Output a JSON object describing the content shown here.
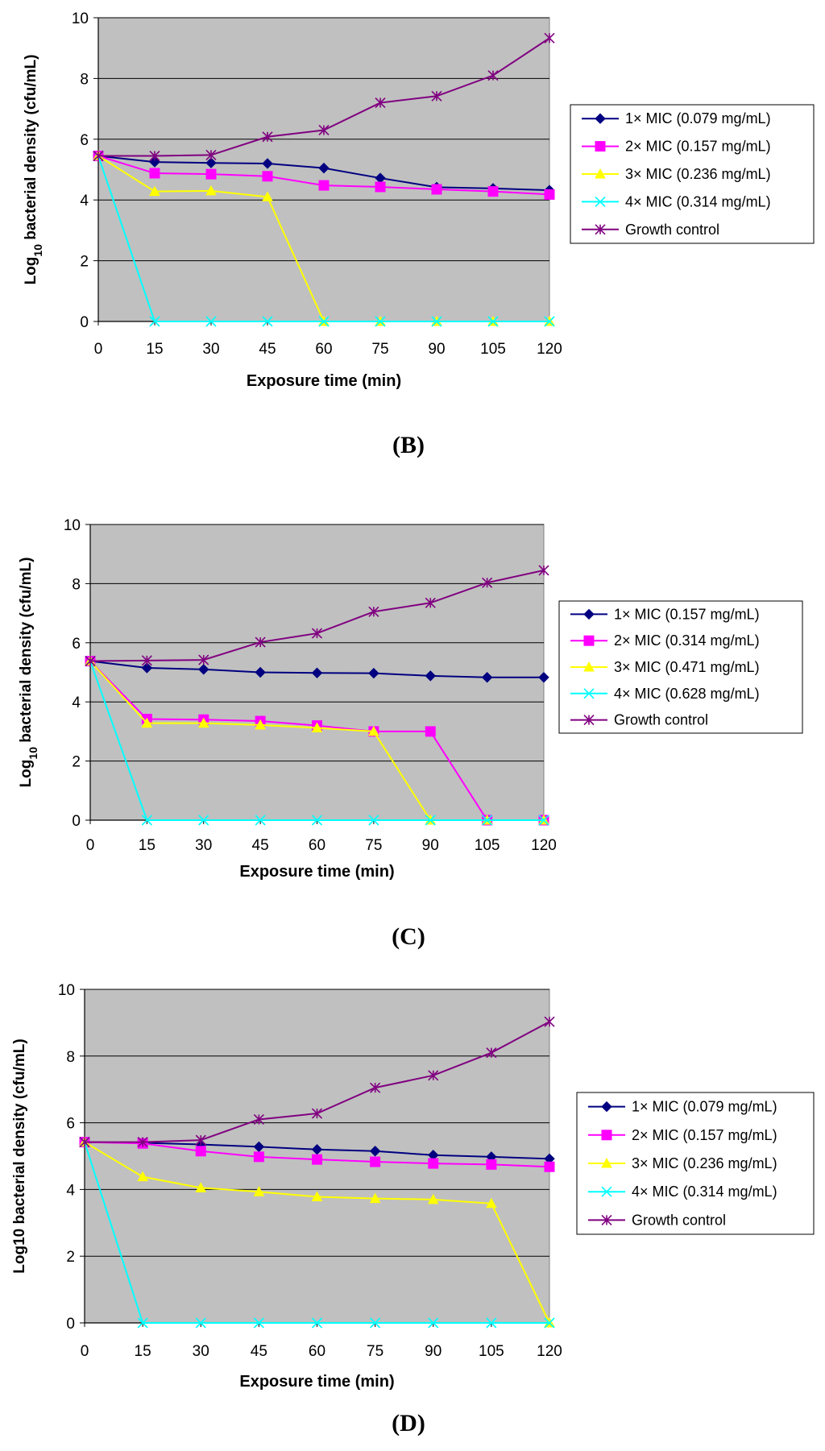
{
  "colors": {
    "plot_bg": "#c0c0c0",
    "gridline": "#000000",
    "mic1": "#000080",
    "mic2": "#ff00ff",
    "mic3": "#ffff00",
    "mic4": "#00ffff",
    "growth": "#800080"
  },
  "chart_data": [
    {
      "type": "line",
      "panel_label": "(B)",
      "xlabel": "Exposure time (min)",
      "ylabel": "Log10 bacterial density (cfu/mL)",
      "ylabel_parts": {
        "pre": "Log",
        "sub": "10",
        "post": " bacterial density (cfu/mL)"
      },
      "x": [
        0,
        15,
        30,
        45,
        60,
        75,
        90,
        105,
        120
      ],
      "x_ticks": [
        "0",
        "15",
        "30",
        "45",
        "60",
        "75",
        "90",
        "105",
        "120"
      ],
      "ylim": [
        0,
        10
      ],
      "y_ticks": [
        "0",
        "2",
        "4",
        "6",
        "8",
        "10"
      ],
      "grid": true,
      "legend_position": "right",
      "series": [
        {
          "name": "1× MIC (0.079 mg/mL)",
          "color": "#000080",
          "marker": "diamond",
          "values": [
            5.45,
            5.25,
            5.22,
            5.2,
            5.05,
            4.72,
            4.42,
            4.38,
            4.32
          ]
        },
        {
          "name": "2× MIC (0.157 mg/mL)",
          "color": "#ff00ff",
          "marker": "square",
          "values": [
            5.45,
            4.88,
            4.85,
            4.78,
            4.48,
            4.43,
            4.35,
            4.28,
            4.18
          ]
        },
        {
          "name": "3× MIC (0.236 mg/mL)",
          "color": "#ffff00",
          "marker": "triangle",
          "values": [
            5.45,
            4.28,
            4.3,
            4.1,
            0,
            0,
            0,
            0,
            0
          ]
        },
        {
          "name": "4× MIC (0.314 mg/mL)",
          "color": "#00ffff",
          "marker": "x",
          "values": [
            5.45,
            0,
            0,
            0,
            0,
            0,
            0,
            0,
            0
          ]
        },
        {
          "name": "Growth control",
          "color": "#800080",
          "marker": "star",
          "values": [
            5.45,
            5.45,
            5.48,
            6.08,
            6.3,
            7.2,
            7.42,
            8.1,
            9.33
          ]
        }
      ]
    },
    {
      "type": "line",
      "panel_label": "(C)",
      "xlabel": "Exposure time (min)",
      "ylabel": "Log10 bacterial density (cfu/mL)",
      "ylabel_parts": {
        "pre": "Log",
        "sub": "10",
        "post": " bacterial density (cfu/mL)"
      },
      "x": [
        0,
        15,
        30,
        45,
        60,
        75,
        90,
        105,
        120
      ],
      "x_ticks": [
        "0",
        "15",
        "30",
        "45",
        "60",
        "75",
        "90",
        "105",
        "120"
      ],
      "ylim": [
        0,
        10
      ],
      "y_ticks": [
        "0",
        "2",
        "4",
        "6",
        "8",
        "10"
      ],
      "grid": true,
      "legend_position": "right",
      "series": [
        {
          "name": "1× MIC (0.157 mg/mL)",
          "color": "#000080",
          "marker": "diamond",
          "values": [
            5.38,
            5.15,
            5.1,
            5.0,
            4.98,
            4.97,
            4.88,
            4.83,
            4.83
          ]
        },
        {
          "name": "2× MIC (0.314 mg/mL)",
          "color": "#ff00ff",
          "marker": "square",
          "values": [
            5.38,
            3.42,
            3.4,
            3.35,
            3.2,
            3.0,
            3.0,
            0,
            0
          ]
        },
        {
          "name": "3× MIC (0.471 mg/mL)",
          "color": "#ffff00",
          "marker": "triangle",
          "values": [
            5.38,
            3.28,
            3.28,
            3.22,
            3.12,
            3.0,
            0,
            0,
            0
          ]
        },
        {
          "name": "4× MIC (0.628 mg/mL)",
          "color": "#00ffff",
          "marker": "x",
          "values": [
            5.38,
            0,
            0,
            0,
            0,
            0,
            0,
            0,
            0
          ]
        },
        {
          "name": "Growth control",
          "color": "#800080",
          "marker": "star",
          "values": [
            5.38,
            5.4,
            5.42,
            6.02,
            6.32,
            7.05,
            7.35,
            8.03,
            8.45
          ]
        }
      ]
    },
    {
      "type": "line",
      "panel_label": "(D)",
      "xlabel": "Exposure time (min)",
      "ylabel": "Log10 bacterial density (cfu/mL)",
      "ylabel_parts": {
        "pre": "Log10",
        "sub": "",
        "post": " bacterial density (cfu/mL)"
      },
      "x": [
        0,
        15,
        30,
        45,
        60,
        75,
        90,
        105,
        120
      ],
      "x_ticks": [
        "0",
        "15",
        "30",
        "45",
        "60",
        "75",
        "90",
        "105",
        "120"
      ],
      "ylim": [
        0,
        10
      ],
      "y_ticks": [
        "0",
        "2",
        "4",
        "6",
        "8",
        "10"
      ],
      "grid": true,
      "legend_position": "right",
      "series": [
        {
          "name": "1× MIC (0.079 mg/mL)",
          "color": "#000080",
          "marker": "diamond",
          "values": [
            5.42,
            5.4,
            5.35,
            5.28,
            5.2,
            5.15,
            5.03,
            4.98,
            4.92
          ]
        },
        {
          "name": "2× MIC (0.157 mg/mL)",
          "color": "#ff00ff",
          "marker": "square",
          "values": [
            5.42,
            5.38,
            5.15,
            4.98,
            4.9,
            4.83,
            4.78,
            4.75,
            4.68
          ]
        },
        {
          "name": "3× MIC (0.236 mg/mL)",
          "color": "#ffff00",
          "marker": "triangle",
          "values": [
            5.42,
            4.38,
            4.05,
            3.93,
            3.78,
            3.73,
            3.7,
            3.58,
            0
          ]
        },
        {
          "name": "4× MIC (0.314 mg/mL)",
          "color": "#00ffff",
          "marker": "x",
          "values": [
            5.42,
            0,
            0,
            0,
            0,
            0,
            0,
            0,
            0
          ]
        },
        {
          "name": "Growth control",
          "color": "#800080",
          "marker": "star",
          "values": [
            5.42,
            5.42,
            5.48,
            6.1,
            6.28,
            7.05,
            7.42,
            8.1,
            9.03
          ]
        }
      ]
    }
  ]
}
